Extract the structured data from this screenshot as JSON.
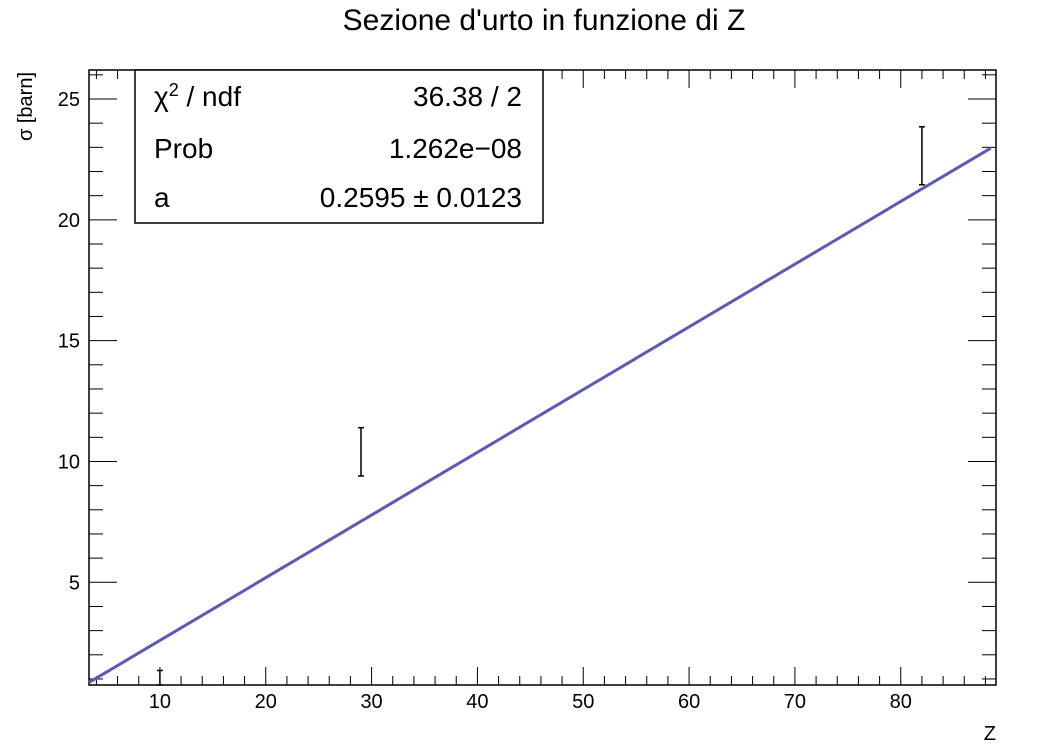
{
  "chart_data": {
    "type": "scatter",
    "title": "Sezione d'urto in funzione di Z",
    "xlabel": "Z",
    "ylabel": "σ [barn]",
    "xlim": [
      3.3,
      89
    ],
    "ylim": [
      0.75,
      26.2
    ],
    "x_ticks": [
      10,
      20,
      30,
      40,
      50,
      60,
      70,
      80
    ],
    "y_ticks": [
      5,
      10,
      15,
      20,
      25
    ],
    "grid": false,
    "points": [
      {
        "x": 10,
        "y": 1.05,
        "yerr": 0.3
      },
      {
        "x": 29,
        "y": 10.4,
        "yerr": 1.0
      },
      {
        "x": 82,
        "y": 22.65,
        "yerr": 1.2
      }
    ],
    "fit": {
      "function": "a*Z",
      "a": 0.2595,
      "x_range": [
        3.3,
        88.5
      ],
      "color": "#5a5ab8"
    },
    "stats_box": {
      "rows": [
        {
          "label": "χ",
          "label_sup": "2",
          "label_rest": " / ndf",
          "value": "36.38 / 2"
        },
        {
          "label": "Prob",
          "value": "1.262e−08"
        },
        {
          "label": "a",
          "value": "0.2595 ± 0.0123"
        }
      ]
    }
  }
}
